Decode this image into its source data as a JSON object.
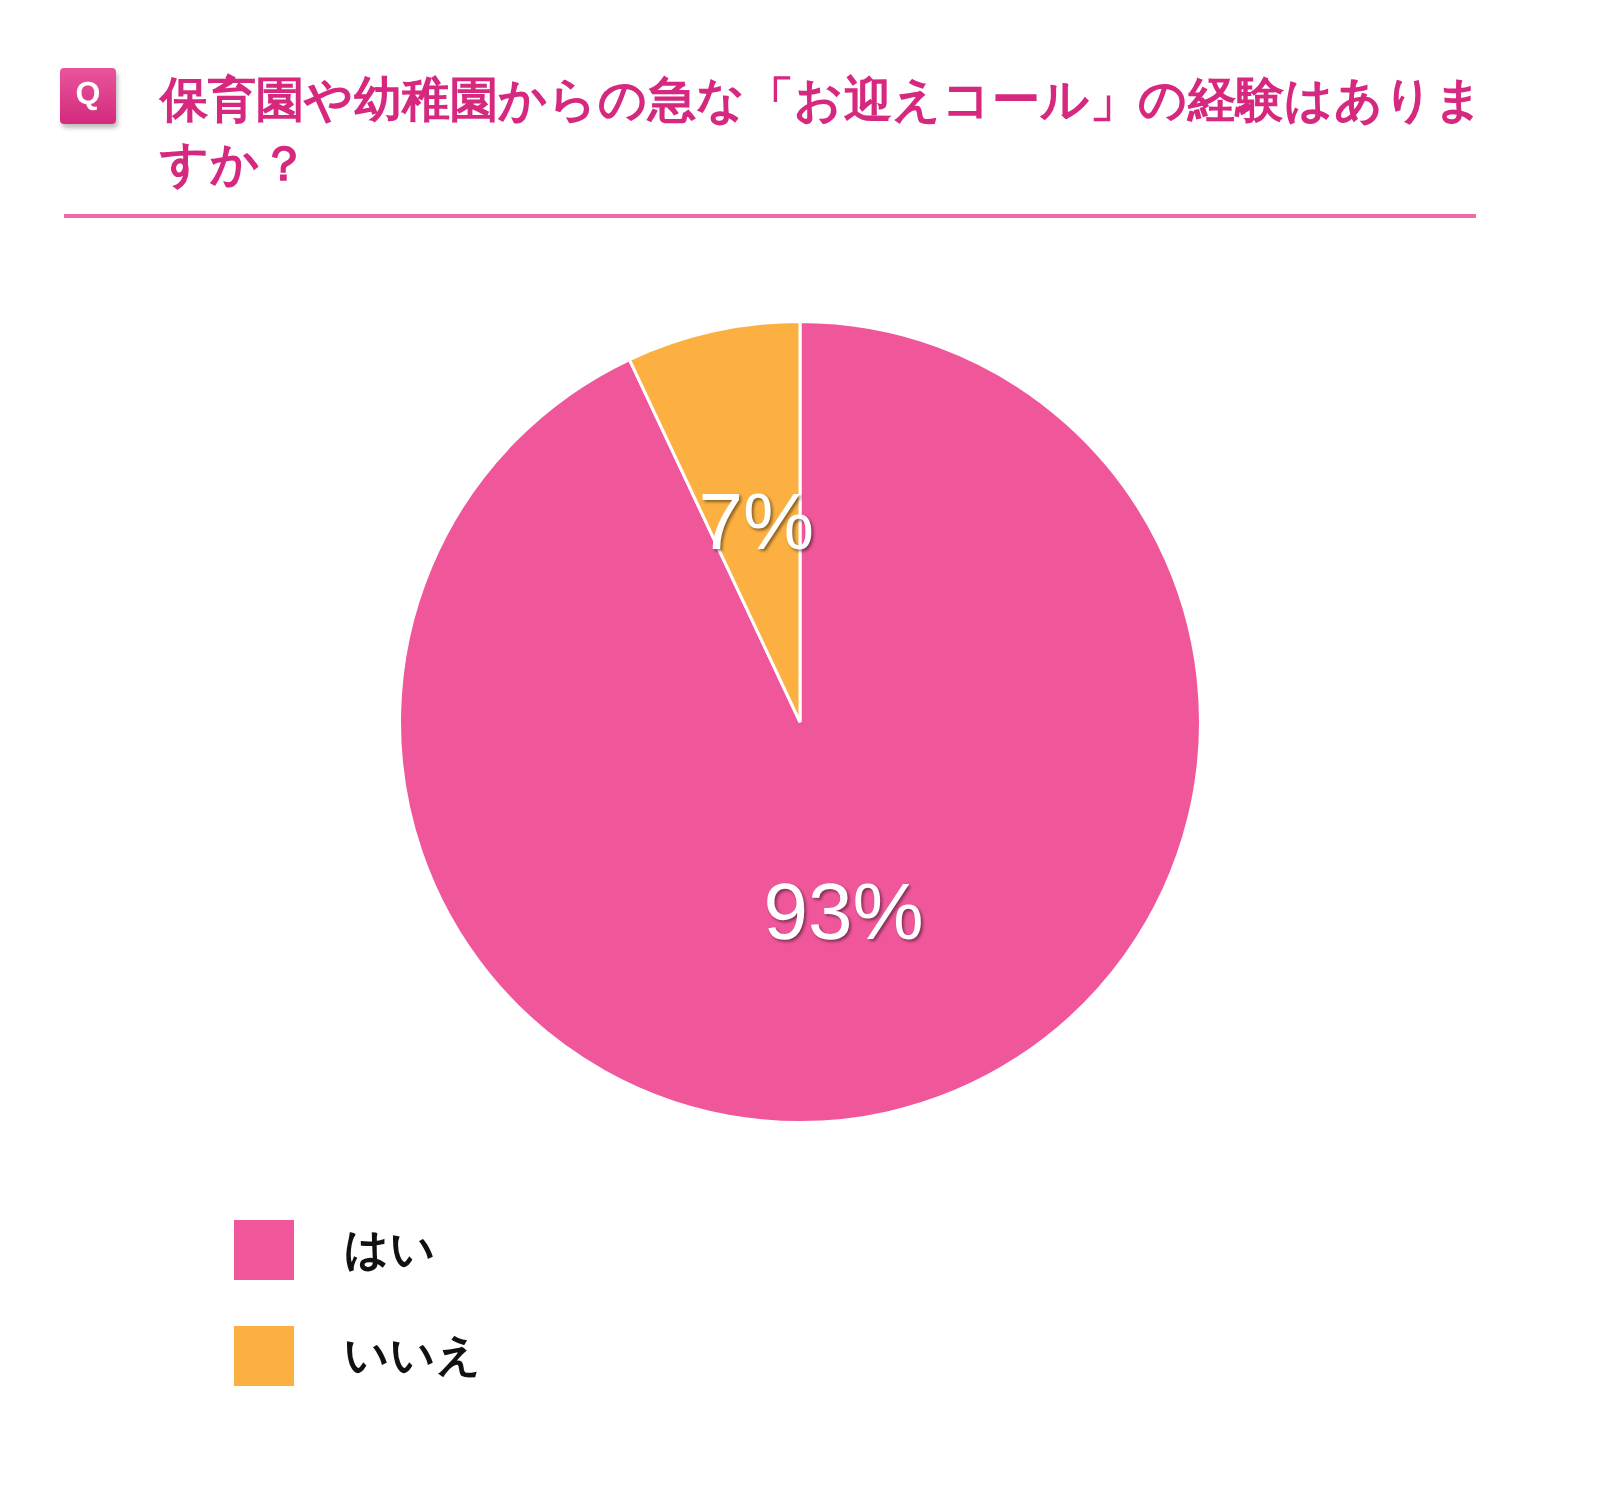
{
  "chart_data": {
    "type": "pie",
    "title": "保育園や幼稚園からの急な「お迎えコール」の経験はありますか？",
    "categories": [
      "はい",
      "いいえ"
    ],
    "values": [
      93,
      7
    ],
    "colors": [
      "#f0579b",
      "#fcb041"
    ],
    "value_labels": [
      "93%",
      "7%"
    ],
    "legend": "bottom left",
    "annotations": [
      "Q"
    ]
  }
}
